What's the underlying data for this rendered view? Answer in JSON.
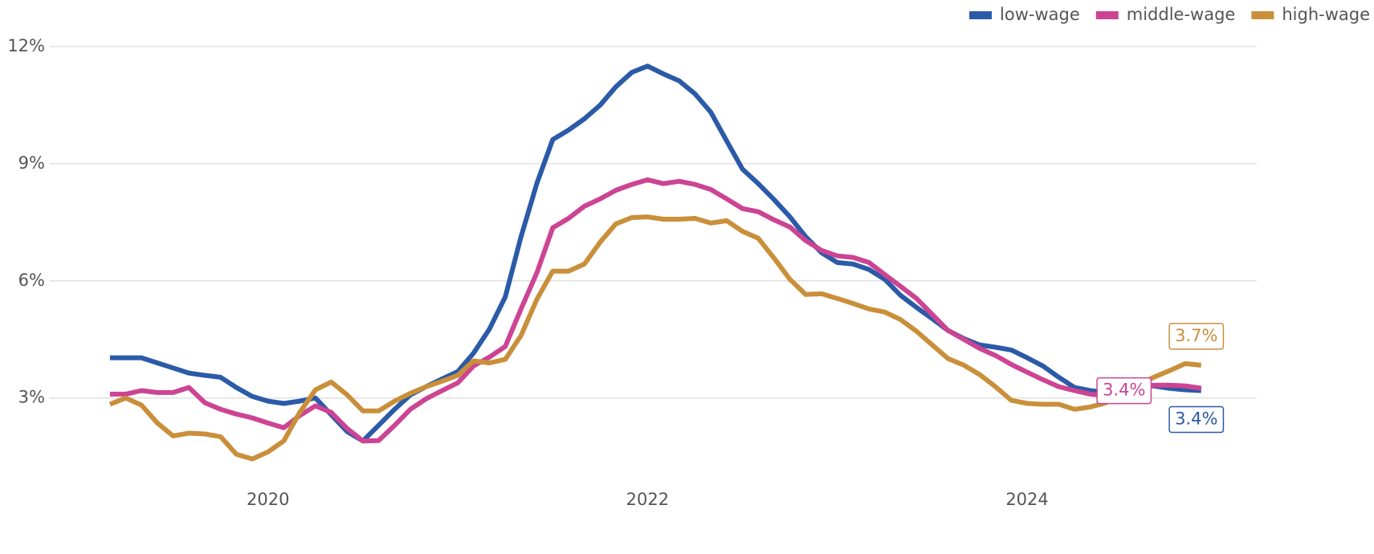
{
  "chart_data": {
    "type": "line",
    "x": [
      2019.167,
      2019.25,
      2019.333,
      2019.417,
      2019.5,
      2019.583,
      2019.667,
      2019.75,
      2019.833,
      2019.917,
      2020.0,
      2020.083,
      2020.167,
      2020.25,
      2020.333,
      2020.417,
      2020.5,
      2020.583,
      2020.667,
      2020.75,
      2020.833,
      2020.917,
      2021.0,
      2021.083,
      2021.167,
      2021.25,
      2021.333,
      2021.417,
      2021.5,
      2021.583,
      2021.667,
      2021.75,
      2021.833,
      2021.917,
      2022.0,
      2022.083,
      2022.167,
      2022.25,
      2022.333,
      2022.417,
      2022.5,
      2022.583,
      2022.667,
      2022.75,
      2022.833,
      2022.917,
      2023.0,
      2023.083,
      2023.167,
      2023.25,
      2023.333,
      2023.417,
      2023.5,
      2023.583,
      2023.667,
      2023.75,
      2023.833,
      2023.917,
      2024.0,
      2024.083,
      2024.167,
      2024.25,
      2024.333,
      2024.417,
      2024.5,
      2024.583,
      2024.667,
      2024.75,
      2024.833,
      2024.917
    ],
    "series": [
      {
        "name": "low-wage",
        "color": "#2b5aa8",
        "values": [
          4.03,
          4.03,
          4.03,
          3.9,
          3.77,
          3.64,
          3.58,
          3.53,
          3.27,
          3.04,
          2.92,
          2.86,
          2.92,
          3.0,
          2.57,
          2.14,
          1.9,
          2.3,
          2.71,
          3.08,
          3.29,
          3.49,
          3.68,
          4.15,
          4.77,
          5.59,
          7.13,
          8.5,
          9.62,
          9.86,
          10.15,
          10.5,
          10.97,
          11.34,
          11.5,
          11.3,
          11.12,
          10.79,
          10.32,
          9.58,
          8.86,
          8.49,
          8.08,
          7.64,
          7.13,
          6.72,
          6.47,
          6.43,
          6.29,
          6.04,
          5.63,
          5.32,
          5.03,
          4.73,
          4.52,
          4.36,
          4.3,
          4.23,
          4.03,
          3.82,
          3.53,
          3.27,
          3.19,
          3.14,
          3.27,
          3.33,
          3.31,
          3.25,
          3.21,
          3.19
        ]
      },
      {
        "name": "middle-wage",
        "color": "#cc4493",
        "values": [
          3.1,
          3.1,
          3.19,
          3.14,
          3.14,
          3.27,
          2.88,
          2.71,
          2.59,
          2.49,
          2.36,
          2.24,
          2.55,
          2.8,
          2.63,
          2.22,
          1.9,
          1.91,
          2.3,
          2.71,
          2.98,
          3.19,
          3.39,
          3.82,
          4.05,
          4.32,
          5.28,
          6.21,
          7.36,
          7.6,
          7.91,
          8.1,
          8.32,
          8.47,
          8.59,
          8.49,
          8.55,
          8.47,
          8.34,
          8.1,
          7.85,
          7.77,
          7.56,
          7.38,
          7.03,
          6.78,
          6.64,
          6.6,
          6.47,
          6.16,
          5.86,
          5.55,
          5.14,
          4.73,
          4.5,
          4.27,
          4.09,
          3.86,
          3.66,
          3.47,
          3.29,
          3.19,
          3.1,
          3.06,
          3.16,
          3.27,
          3.33,
          3.33,
          3.31,
          3.25
        ]
      },
      {
        "name": "high-wage",
        "color": "#c98f3a",
        "values": [
          2.84,
          3.0,
          2.82,
          2.36,
          2.03,
          2.1,
          2.08,
          2.01,
          1.56,
          1.44,
          1.62,
          1.9,
          2.63,
          3.21,
          3.41,
          3.08,
          2.67,
          2.67,
          2.92,
          3.12,
          3.29,
          3.43,
          3.58,
          3.95,
          3.9,
          3.99,
          4.6,
          5.53,
          6.25,
          6.25,
          6.43,
          6.99,
          7.46,
          7.62,
          7.64,
          7.58,
          7.58,
          7.6,
          7.48,
          7.54,
          7.27,
          7.09,
          6.58,
          6.04,
          5.65,
          5.67,
          5.55,
          5.42,
          5.28,
          5.2,
          5.01,
          4.71,
          4.36,
          4.01,
          3.84,
          3.6,
          3.29,
          2.94,
          2.86,
          2.84,
          2.84,
          2.71,
          2.77,
          2.88,
          3.12,
          3.33,
          3.53,
          3.7,
          3.88,
          3.84
        ]
      }
    ],
    "annotations": [
      "3.4%",
      "3.4%",
      "3.7%"
    ],
    "xlim": [
      2018.85,
      2025.21
    ],
    "xticks": [
      2020,
      2022,
      2024
    ],
    "ylim": [
      1,
      12
    ],
    "yticks": [
      {
        "value": 3,
        "label": "3%"
      },
      {
        "value": 6,
        "label": "6%"
      },
      {
        "value": 9,
        "label": "9%"
      },
      {
        "value": 12,
        "label": "12%"
      }
    ],
    "grid": true,
    "legend": "top-right"
  }
}
